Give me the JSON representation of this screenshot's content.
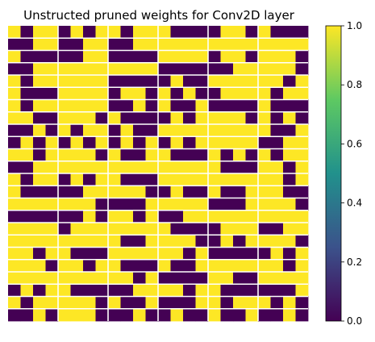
{
  "chart_data": {
    "type": "heatmap",
    "title": "Unstructed pruned weights for Conv2D layer",
    "xlabel": "",
    "ylabel": "",
    "axes_visible": false,
    "block_grid": "24 rows x 6 column blocks of 4 cells (row separators and block separators drawn in white)",
    "value_min": 0.0,
    "value_max": 1.0,
    "colormap": [
      "#440154",
      "#3b528b",
      "#21918c",
      "#5ec962",
      "#fde725"
    ],
    "colorbar": {
      "ticks": [
        "0.0",
        "0.2",
        "0.4",
        "0.6",
        "0.8",
        "1.0"
      ],
      "tick_values": [
        0.0,
        0.2,
        0.4,
        0.6,
        0.8,
        1.0
      ]
    },
    "matrix": [
      [
        1,
        0,
        1,
        1,
        0,
        1,
        0,
        1,
        1,
        0,
        1,
        1,
        1,
        0,
        0,
        0,
        0,
        1,
        1,
        0,
        1,
        0,
        0,
        0
      ],
      [
        0,
        0,
        1,
        1,
        0,
        0,
        1,
        1,
        0,
        0,
        1,
        1,
        1,
        1,
        1,
        1,
        1,
        1,
        1,
        1,
        1,
        1,
        1,
        1
      ],
      [
        1,
        0,
        0,
        0,
        0,
        0,
        1,
        1,
        0,
        0,
        0,
        0,
        1,
        1,
        1,
        1,
        0,
        1,
        1,
        0,
        1,
        1,
        1,
        0
      ],
      [
        0,
        0,
        1,
        1,
        1,
        1,
        1,
        1,
        1,
        1,
        1,
        1,
        0,
        0,
        0,
        0,
        0,
        0,
        1,
        1,
        1,
        1,
        1,
        0
      ],
      [
        1,
        0,
        1,
        1,
        1,
        1,
        1,
        1,
        0,
        0,
        0,
        0,
        0,
        1,
        0,
        0,
        1,
        1,
        1,
        1,
        1,
        1,
        0,
        1
      ],
      [
        1,
        0,
        0,
        0,
        1,
        1,
        1,
        1,
        0,
        1,
        1,
        0,
        1,
        0,
        1,
        0,
        0,
        1,
        1,
        1,
        1,
        0,
        1,
        1
      ],
      [
        1,
        0,
        1,
        1,
        1,
        1,
        1,
        1,
        0,
        0,
        1,
        0,
        1,
        0,
        0,
        1,
        0,
        0,
        0,
        0,
        1,
        0,
        0,
        0
      ],
      [
        1,
        1,
        0,
        0,
        1,
        1,
        1,
        0,
        1,
        0,
        0,
        0,
        0,
        1,
        0,
        1,
        1,
        1,
        1,
        0,
        1,
        0,
        1,
        0
      ],
      [
        0,
        0,
        1,
        0,
        1,
        0,
        1,
        1,
        0,
        1,
        0,
        0,
        1,
        1,
        1,
        1,
        1,
        1,
        1,
        1,
        1,
        0,
        0,
        1
      ],
      [
        0,
        1,
        0,
        1,
        0,
        1,
        0,
        1,
        0,
        1,
        0,
        1,
        0,
        1,
        0,
        1,
        1,
        1,
        1,
        1,
        0,
        0,
        1,
        1
      ],
      [
        1,
        1,
        0,
        1,
        1,
        1,
        1,
        0,
        1,
        0,
        0,
        1,
        1,
        0,
        0,
        0,
        1,
        0,
        1,
        0,
        1,
        0,
        1,
        1
      ],
      [
        0,
        0,
        1,
        1,
        1,
        1,
        1,
        1,
        1,
        1,
        1,
        1,
        1,
        1,
        1,
        1,
        1,
        0,
        0,
        0,
        1,
        1,
        0,
        1
      ],
      [
        1,
        0,
        1,
        1,
        0,
        1,
        0,
        1,
        1,
        0,
        0,
        0,
        1,
        1,
        1,
        1,
        1,
        1,
        1,
        1,
        1,
        1,
        0,
        1
      ],
      [
        1,
        0,
        0,
        0,
        0,
        0,
        1,
        1,
        1,
        1,
        1,
        0,
        0,
        1,
        0,
        0,
        1,
        0,
        0,
        1,
        1,
        1,
        0,
        0
      ],
      [
        1,
        1,
        1,
        1,
        1,
        1,
        1,
        0,
        0,
        0,
        0,
        1,
        1,
        1,
        1,
        1,
        0,
        0,
        0,
        1,
        1,
        1,
        1,
        0
      ],
      [
        0,
        0,
        0,
        0,
        0,
        0,
        1,
        0,
        1,
        1,
        0,
        1,
        0,
        0,
        1,
        1,
        1,
        1,
        1,
        1,
        1,
        1,
        1,
        1
      ],
      [
        1,
        1,
        1,
        1,
        0,
        1,
        1,
        1,
        1,
        1,
        1,
        1,
        1,
        0,
        0,
        0,
        0,
        1,
        1,
        1,
        0,
        0,
        1,
        1
      ],
      [
        1,
        1,
        1,
        1,
        1,
        1,
        1,
        1,
        1,
        0,
        0,
        1,
        1,
        1,
        1,
        0,
        0,
        1,
        0,
        1,
        1,
        1,
        1,
        0
      ],
      [
        1,
        1,
        0,
        1,
        1,
        0,
        0,
        0,
        1,
        1,
        1,
        1,
        1,
        1,
        0,
        1,
        0,
        0,
        0,
        0,
        0,
        1,
        0,
        1
      ],
      [
        1,
        1,
        1,
        0,
        1,
        1,
        0,
        1,
        1,
        0,
        0,
        0,
        1,
        0,
        0,
        1,
        1,
        1,
        1,
        1,
        1,
        1,
        0,
        1
      ],
      [
        1,
        1,
        1,
        1,
        1,
        1,
        1,
        1,
        1,
        1,
        0,
        1,
        0,
        0,
        0,
        0,
        1,
        1,
        0,
        0,
        1,
        1,
        1,
        1
      ],
      [
        0,
        1,
        0,
        1,
        1,
        0,
        0,
        0,
        0,
        0,
        1,
        1,
        1,
        1,
        0,
        1,
        1,
        0,
        0,
        0,
        0,
        0,
        0,
        1
      ],
      [
        1,
        0,
        1,
        1,
        1,
        1,
        1,
        0,
        1,
        0,
        0,
        1,
        0,
        0,
        0,
        1,
        1,
        0,
        1,
        1,
        1,
        0,
        1,
        0
      ],
      [
        0,
        0,
        1,
        0,
        1,
        1,
        1,
        0,
        0,
        0,
        1,
        0,
        0,
        1,
        0,
        0,
        1,
        0,
        0,
        1,
        0,
        0,
        1,
        0
      ]
    ]
  }
}
